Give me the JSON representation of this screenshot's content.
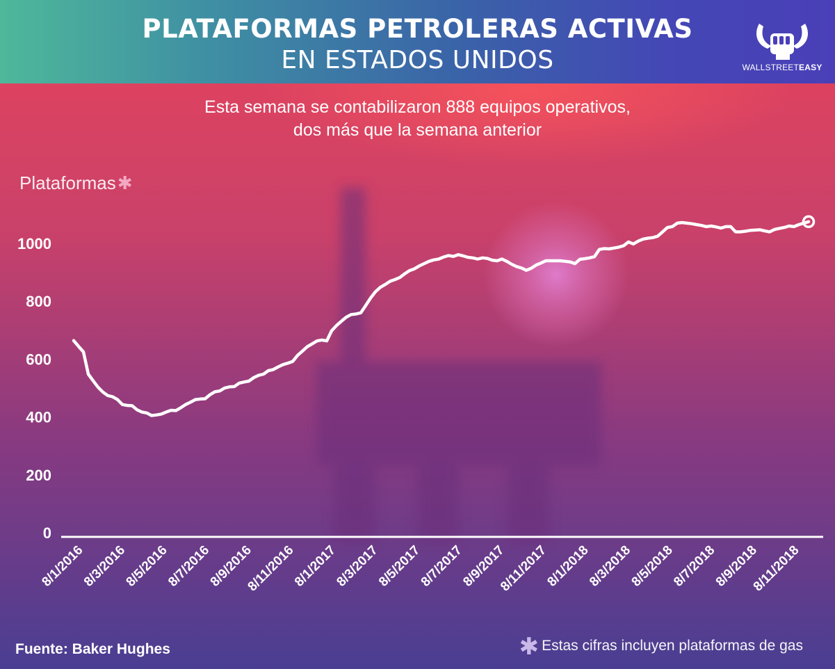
{
  "header": {
    "title_line1": "PLATAFORMAS PETROLERAS ACTIVAS",
    "title_line2": "EN ESTADOS UNIDOS",
    "brand_light": "WALLSTREET",
    "brand_bold": "EASY"
  },
  "subtitle_line1": "Esta semana se contabilizaron 888 equipos operativos,",
  "subtitle_line2": "dos más que la semana anterior",
  "footer": {
    "source": "Fuente: Baker Hughes",
    "star": "✱",
    "note": "Estas cifras incluyen plataformas de gas"
  },
  "colors": {
    "line": "#ffffff",
    "header_left": "#4eb89a",
    "header_right": "#4a3fb8"
  },
  "chart_data": {
    "type": "line",
    "ylabel": "Plataformas",
    "ylabel_star": "✱",
    "ylim": [
      0,
      1100
    ],
    "yticks": [
      0,
      200,
      400,
      600,
      800,
      1000
    ],
    "grid": false,
    "xtick_labels": [
      "8/1/2016",
      "8/3/2016",
      "8/5/2016",
      "8/7/2016",
      "8/9/2016",
      "8/11/2016",
      "8/1/2017",
      "8/3/2017",
      "8/5/2017",
      "8/7/2017",
      "8/9/2017",
      "8/11/2017",
      "8/1/2018",
      "8/3/2018",
      "8/5/2018",
      "8/7/2018",
      "8/9/2018",
      "8/11/2018"
    ],
    "series": [
      {
        "values": [
          664,
          644,
          625,
          548,
          525,
          503,
          486,
          474,
          470,
          460,
          443,
          440,
          439,
          425,
          417,
          414,
          405,
          407,
          410,
          417,
          423,
          422,
          432,
          443,
          451,
          460,
          462,
          463,
          477,
          487,
          490,
          500,
          504,
          505,
          517,
          521,
          524,
          536,
          544,
          548,
          560,
          564,
          573,
          581,
          586,
          592,
          613,
          628,
          643,
          653,
          663,
          666,
          663,
          698,
          716,
          731,
          745,
          754,
          756,
          760,
          785,
          811,
          833,
          848,
          858,
          869,
          875,
          882,
          895,
          906,
          912,
          922,
          930,
          938,
          943,
          946,
          953,
          958,
          955,
          961,
          957,
          952,
          950,
          946,
          950,
          948,
          942,
          940,
          946,
          938,
          928,
          920,
          915,
          907,
          914,
          925,
          932,
          940,
          940,
          940,
          940,
          938,
          936,
          930,
          945,
          947,
          950,
          954,
          979,
          982,
          981,
          984,
          987,
          992,
          1005,
          998,
          1008,
          1015,
          1018,
          1020,
          1025,
          1040,
          1055,
          1058,
          1070,
          1072,
          1070,
          1068,
          1065,
          1062,
          1058,
          1060,
          1057,
          1053,
          1058,
          1058,
          1040,
          1040,
          1042,
          1045,
          1046,
          1047,
          1043,
          1040,
          1048,
          1052,
          1055,
          1060,
          1058,
          1065,
          1070,
          1075
        ]
      }
    ]
  }
}
